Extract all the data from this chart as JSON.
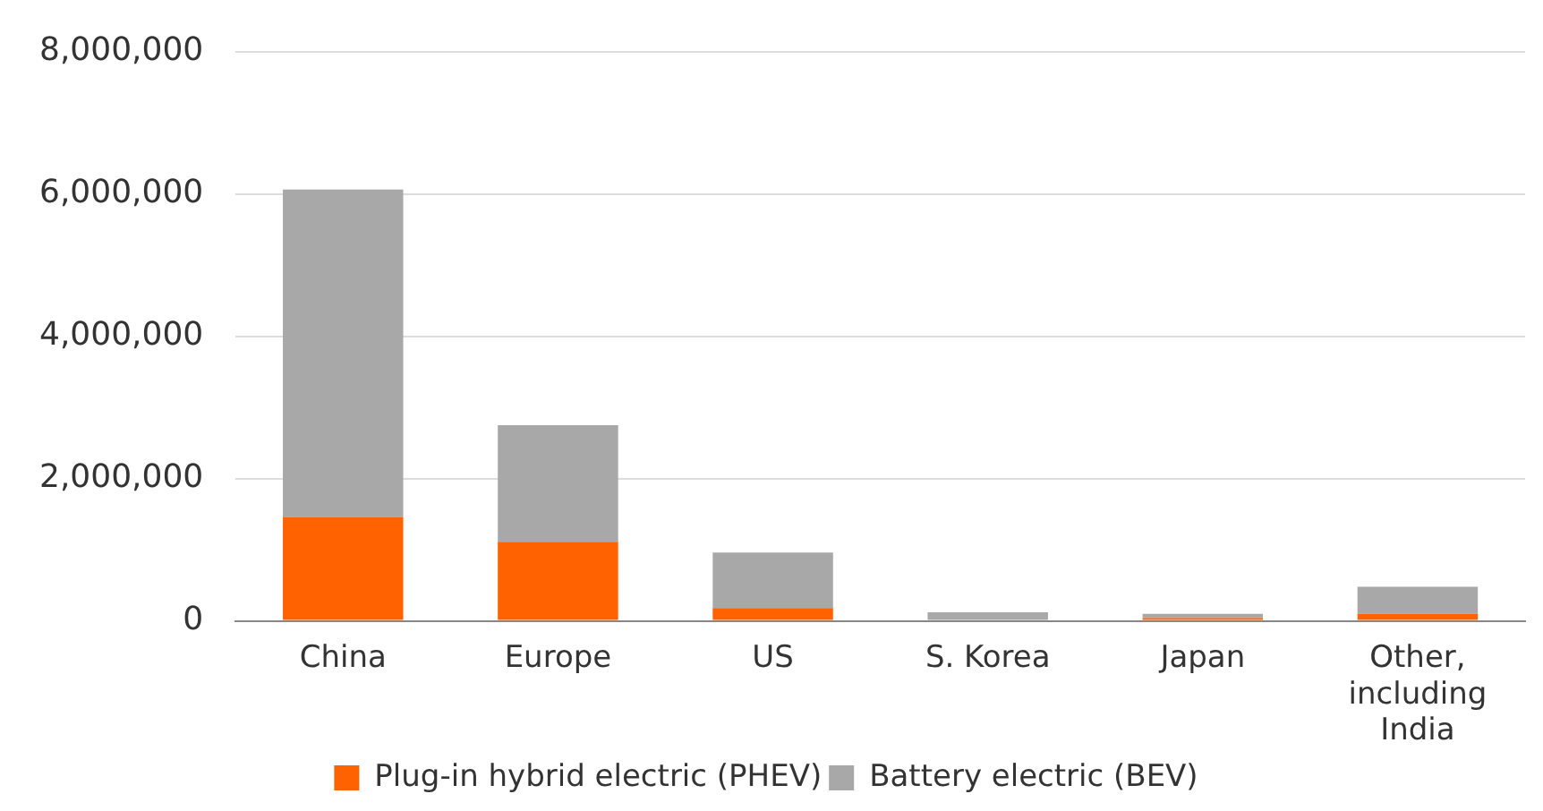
{
  "chart_data": {
    "type": "bar",
    "stacked": true,
    "categories": [
      "China",
      "Europe",
      "US",
      "S. Korea",
      "Japan",
      "Other, including India"
    ],
    "series": [
      {
        "name": "Plug-in hybrid electric (PHEV)",
        "color": "#ff6200",
        "values": [
          1460000,
          1110000,
          180000,
          null,
          40000,
          100000
        ]
      },
      {
        "name": "Battery electric (BEV)",
        "color": "#a8a8a8",
        "values": [
          4600000,
          1640000,
          780000,
          120000,
          60000,
          380000
        ]
      }
    ],
    "ylim": [
      0,
      8000000
    ],
    "yticks": [
      0,
      {
        "value": 2000000,
        "label": "2,000,000"
      },
      {
        "value": 4000000,
        "label": "4,000,000"
      },
      {
        "value": 6000000,
        "label": "6,000,000"
      },
      {
        "value": 8000000,
        "label": "8,000,000"
      }
    ],
    "grid": "y",
    "legend": "bottom"
  }
}
